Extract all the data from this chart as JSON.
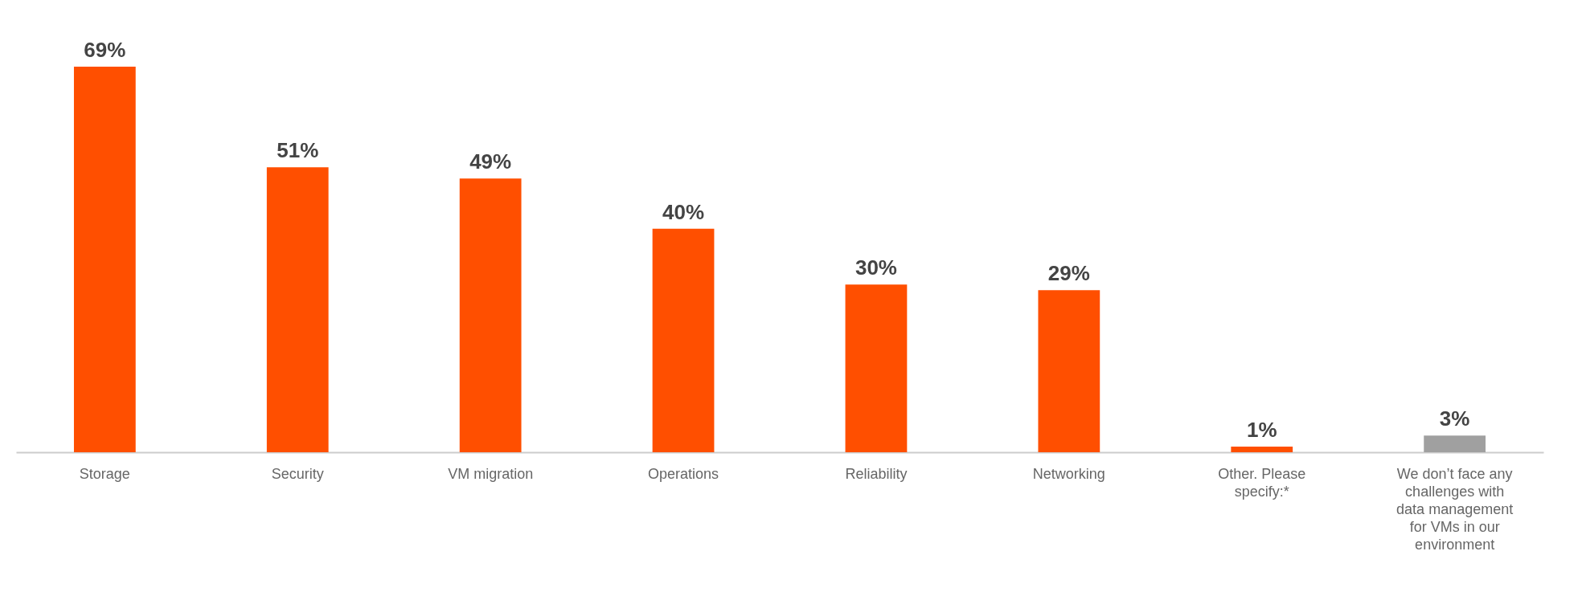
{
  "chart_data": {
    "type": "bar",
    "categories": [
      "Storage",
      "Security",
      "VM migration",
      "Operations",
      "Reliability",
      "Networking",
      "Other. Please specify:*",
      "We don’t face any challenges with data management for VMs in our environment"
    ],
    "values": [
      69,
      51,
      49,
      40,
      30,
      29,
      1,
      3
    ],
    "colors": [
      "#ff4f00",
      "#ff4f00",
      "#ff4f00",
      "#ff4f00",
      "#ff4f00",
      "#ff4f00",
      "#ff4f00",
      "#a0a0a0"
    ],
    "value_labels": [
      "69%",
      "51%",
      "49%",
      "40%",
      "30%",
      "29%",
      "1%",
      "3%"
    ],
    "data_labels": false
  }
}
